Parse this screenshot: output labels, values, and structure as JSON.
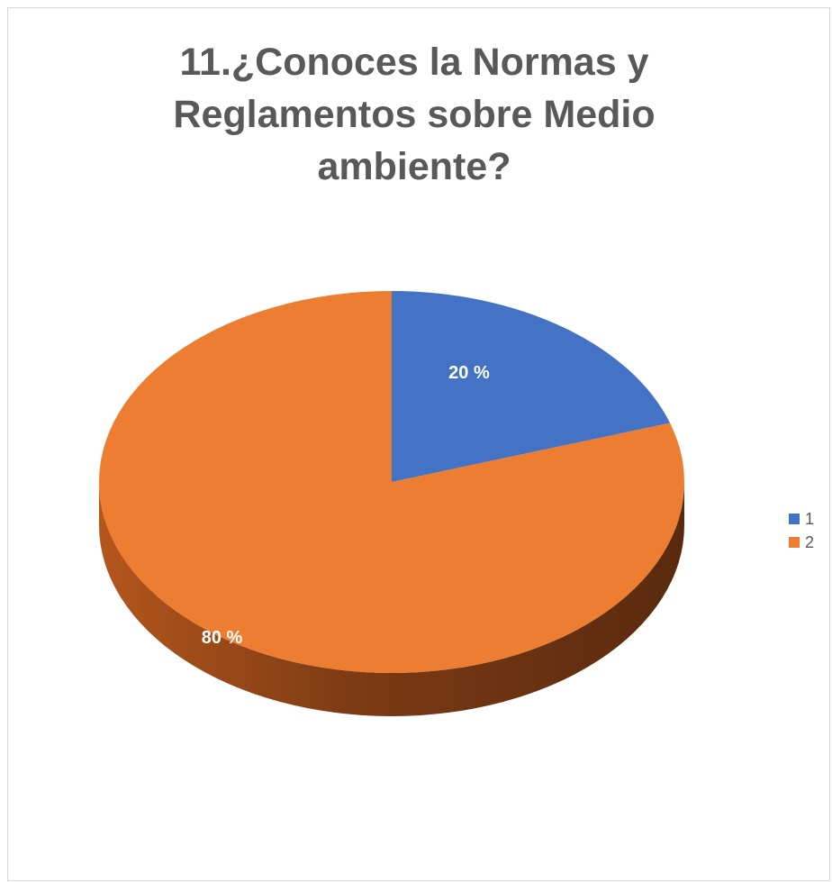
{
  "chart_data": {
    "type": "pie",
    "title": "11.¿Conoces la Normas y Reglamentos sobre Medio ambiente?",
    "categories": [
      "1",
      "2"
    ],
    "values": [
      20,
      80
    ],
    "data_labels": [
      "20 %",
      "80 %"
    ],
    "colors": [
      "#4472c4",
      "#ed7d31"
    ],
    "style": "3d",
    "legend_position": "right"
  }
}
